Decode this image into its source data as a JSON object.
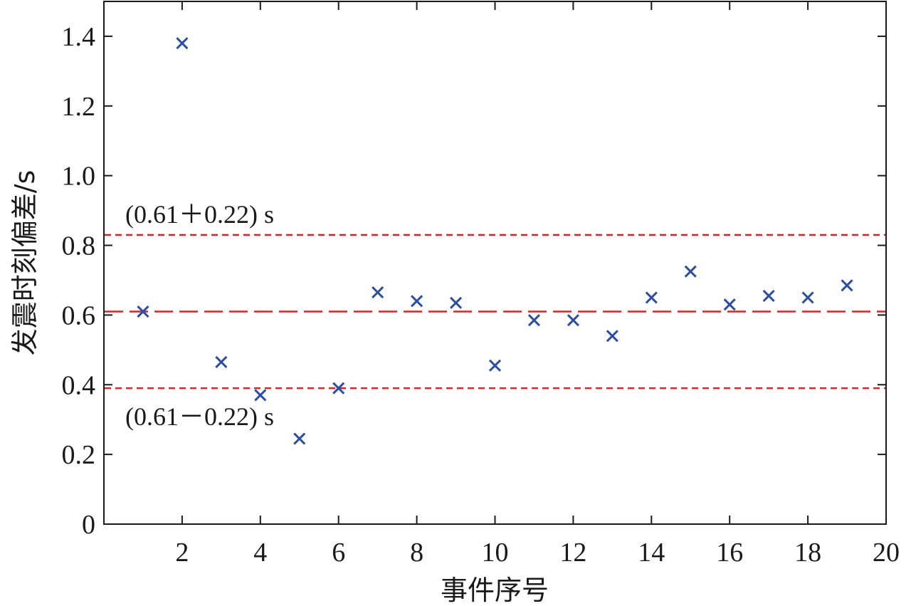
{
  "chart_data": {
    "type": "scatter",
    "xlabel": "事件序号",
    "ylabel": "发震时刻偏差/s",
    "xlim": [
      0,
      20
    ],
    "ylim": [
      0,
      1.5
    ],
    "xticks": [
      2,
      4,
      6,
      8,
      10,
      12,
      14,
      16,
      18,
      20
    ],
    "xtick_labels": [
      "2",
      "4",
      "6",
      "8",
      "10",
      "12",
      "14",
      "16",
      "18",
      "20"
    ],
    "yticks": [
      0,
      0.2,
      0.4,
      0.6,
      0.8,
      1.0,
      1.2,
      1.4
    ],
    "ytick_labels": [
      "0",
      "0.2",
      "0.4",
      "0.6",
      "0.8",
      "1.0",
      "1.2",
      "1.4"
    ],
    "grid": false,
    "marker": "x",
    "colors": {
      "points": "#2b4ea2",
      "lines": "#d62728",
      "axis": "#1a1a1a"
    },
    "series": [
      {
        "x": [
          1,
          2,
          3,
          4,
          5,
          6,
          7,
          8,
          9,
          10,
          11,
          12,
          13,
          14,
          15,
          16,
          17,
          18,
          19
        ],
        "y": [
          0.61,
          1.38,
          0.465,
          0.37,
          0.245,
          0.39,
          0.665,
          0.64,
          0.635,
          0.455,
          0.585,
          0.585,
          0.54,
          0.65,
          0.725,
          0.63,
          0.655,
          0.65,
          0.685
        ]
      }
    ],
    "reference_lines": [
      {
        "y": 0.83,
        "style": "short-dash",
        "label": "(0.61＋0.22) s"
      },
      {
        "y": 0.61,
        "style": "long-dash",
        "label": ""
      },
      {
        "y": 0.39,
        "style": "short-dash",
        "label": "(0.61－0.22) s"
      }
    ]
  }
}
